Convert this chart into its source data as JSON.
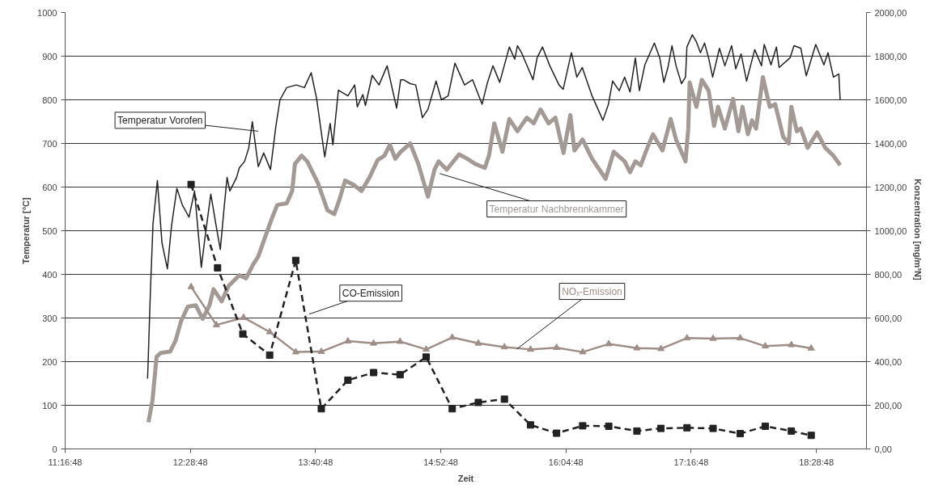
{
  "chart_data": {
    "type": "line",
    "xlabel": "Zeit",
    "ylabel": "Temperatur [°C]",
    "y2label": "Konzentration  [mg/m³N]",
    "xlim": [
      11.28,
      18.96
    ],
    "xticks": [
      {
        "value": 11.28,
        "label": "11:16:48"
      },
      {
        "value": 12.48,
        "label": "12:28:48"
      },
      {
        "value": 13.68,
        "label": "13:40:48"
      },
      {
        "value": 14.88,
        "label": "14:52:48"
      },
      {
        "value": 16.08,
        "label": "16:04:48"
      },
      {
        "value": 17.28,
        "label": "17:16:48"
      },
      {
        "value": 18.48,
        "label": "18:28:48"
      }
    ],
    "ylim": [
      0,
      1000
    ],
    "yticks": [
      0,
      100,
      200,
      300,
      400,
      500,
      600,
      700,
      800,
      900,
      1000
    ],
    "y2lim": [
      0,
      2000
    ],
    "y2ticks": [
      {
        "value": 0,
        "label": "0,00"
      },
      {
        "value": 200,
        "label": "200,00"
      },
      {
        "value": 400,
        "label": "400,00"
      },
      {
        "value": 600,
        "label": "600,00"
      },
      {
        "value": 800,
        "label": "800,00"
      },
      {
        "value": 1000,
        "label": "1000,00"
      },
      {
        "value": 1200,
        "label": "1200,00"
      },
      {
        "value": 1400,
        "label": "1400,00"
      },
      {
        "value": 1600,
        "label": "1600,00"
      },
      {
        "value": 1800,
        "label": "1800,00"
      },
      {
        "value": 2000,
        "label": "2000,00"
      }
    ],
    "grid": "y",
    "legend": false,
    "series": [
      {
        "name": "Temperatur Nachbrennkammer",
        "color": "#a39a96",
        "marker": "none",
        "line_style": "solid",
        "x": [
          12.078,
          12.117,
          12.156,
          12.195,
          12.286,
          12.338,
          12.39,
          12.455,
          12.533,
          12.598,
          12.663,
          12.702,
          12.78,
          12.845,
          12.95,
          13.014,
          13.08,
          13.131,
          13.196,
          13.261,
          13.313,
          13.404,
          13.456,
          13.482,
          13.547,
          13.6,
          13.703,
          13.794,
          13.86,
          13.91,
          13.963,
          14.04,
          14.12,
          14.197,
          14.275,
          14.34,
          14.392,
          14.444,
          14.496,
          14.587,
          14.665,
          14.757,
          14.82,
          14.86,
          14.938,
          15.055,
          15.133,
          15.211,
          15.302,
          15.342,
          15.393,
          15.471,
          15.537,
          15.615,
          15.705,
          15.771,
          15.836,
          15.914,
          15.979,
          16.057,
          16.122,
          16.161,
          16.239,
          16.33,
          16.46,
          16.538,
          16.642,
          16.694,
          16.745,
          16.797,
          16.85,
          16.914,
          17.005,
          17.083,
          17.135,
          17.226,
          17.252,
          17.265,
          17.33,
          17.382,
          17.447,
          17.499,
          17.538,
          17.603,
          17.681,
          17.733,
          17.772,
          17.824,
          17.863,
          17.902,
          17.967,
          18.033,
          18.085,
          18.162,
          18.215,
          18.24,
          18.292,
          18.331,
          18.396,
          18.487,
          18.565,
          18.643,
          18.708
        ],
        "values": [
          61,
          111,
          211,
          220,
          223,
          248,
          292,
          326,
          329,
          298,
          329,
          366,
          338,
          373,
          398,
          391,
          422,
          441,
          485,
          528,
          559,
          563,
          591,
          653,
          672,
          659,
          609,
          547,
          538,
          572,
          615,
          606,
          591,
          622,
          662,
          672,
          697,
          665,
          681,
          700,
          653,
          578,
          640,
          659,
          640,
          675,
          665,
          653,
          644,
          672,
          746,
          681,
          756,
          728,
          759,
          746,
          778,
          746,
          759,
          678,
          765,
          684,
          709,
          665,
          619,
          681,
          659,
          634,
          659,
          650,
          684,
          721,
          684,
          756,
          709,
          659,
          734,
          840,
          784,
          846,
          821,
          740,
          784,
          734,
          802,
          728,
          784,
          721,
          753,
          734,
          852,
          784,
          790,
          715,
          700,
          784,
          728,
          734,
          690,
          725,
          690,
          672,
          650
        ]
      },
      {
        "name": "Temperatur Vorofen",
        "color": "#222222",
        "marker": "none",
        "line_style": "solid",
        "x": [
          12.07,
          12.097,
          12.122,
          12.164,
          12.208,
          12.26,
          12.299,
          12.351,
          12.403,
          12.467,
          12.52,
          12.585,
          12.624,
          12.676,
          12.728,
          12.767,
          12.806,
          12.832,
          12.858,
          12.923,
          12.949,
          13.0,
          13.04,
          13.074,
          13.131,
          13.183,
          13.248,
          13.3,
          13.339,
          13.404,
          13.495,
          13.573,
          13.638,
          13.69,
          13.768,
          13.82,
          13.846,
          13.899,
          13.99,
          14.055,
          14.08,
          14.133,
          14.158,
          14.223,
          14.288,
          14.366,
          14.457,
          14.496,
          14.523,
          14.587,
          14.64,
          14.704,
          14.757,
          14.835,
          14.886,
          14.951,
          15.016,
          15.108,
          15.185,
          15.276,
          15.328,
          15.38,
          15.445,
          15.537,
          15.589,
          15.615,
          15.654,
          15.693,
          15.764,
          15.803,
          15.855,
          15.925,
          16.013,
          16.053,
          16.132,
          16.184,
          16.236,
          16.33,
          16.434,
          16.487,
          16.527,
          16.59,
          16.642,
          16.694,
          16.745,
          16.784,
          16.836,
          16.927,
          16.979,
          17.018,
          17.057,
          17.096,
          17.135,
          17.187,
          17.226,
          17.239,
          17.291,
          17.33,
          17.369,
          17.408,
          17.447,
          17.486,
          17.551,
          17.603,
          17.668,
          17.707,
          17.759,
          17.811,
          17.889,
          17.954,
          17.98,
          18.045,
          18.097,
          18.123,
          18.227,
          18.266,
          18.331,
          18.383,
          18.474,
          18.552,
          18.591,
          18.643,
          18.695,
          18.708
        ],
        "values": [
          161,
          360,
          516,
          615,
          472,
          413,
          510,
          597,
          559,
          531,
          591,
          416,
          491,
          584,
          510,
          457,
          559,
          622,
          591,
          622,
          644,
          659,
          690,
          750,
          647,
          678,
          640,
          740,
          800,
          828,
          834,
          828,
          862,
          803,
          669,
          746,
          697,
          822,
          809,
          834,
          784,
          812,
          787,
          856,
          834,
          878,
          781,
          846,
          846,
          837,
          834,
          759,
          778,
          843,
          800,
          809,
          884,
          834,
          846,
          790,
          840,
          878,
          840,
          921,
          893,
          924,
          908,
          886,
          846,
          896,
          921,
          878,
          834,
          824,
          908,
          852,
          874,
          809,
          753,
          790,
          843,
          821,
          852,
          818,
          896,
          821,
          880,
          930,
          896,
          840,
          874,
          924,
          878,
          837,
          852,
          921,
          949,
          933,
          908,
          930,
          896,
          852,
          918,
          878,
          924,
          871,
          905,
          843,
          915,
          878,
          927,
          880,
          921,
          874,
          896,
          924,
          918,
          855,
          927,
          880,
          908,
          852,
          859,
          800
        ]
      },
      {
        "name": "NOₓ-Emission",
        "color": "#9e8e88",
        "marker": "triangle",
        "line_style": "solid",
        "axis": "y2",
        "x": [
          12.487,
          12.73,
          12.99,
          13.24,
          13.49,
          13.735,
          13.99,
          14.236,
          14.49,
          14.74,
          14.99,
          15.24,
          15.49,
          15.74,
          15.99,
          16.24,
          16.49,
          16.76,
          16.99,
          17.24,
          17.49,
          17.75,
          17.99,
          18.24,
          18.43
        ],
        "values": [
          743,
          568,
          602,
          536,
          444,
          446,
          494,
          484,
          492,
          456,
          511,
          484,
          467,
          456,
          464,
          444,
          481,
          462,
          459,
          508,
          506,
          508,
          471,
          477,
          461
        ]
      },
      {
        "name": "CO-Emission",
        "color": "#222222",
        "marker": "square",
        "line_style": "dashed",
        "axis": "y2",
        "x": [
          12.487,
          12.741,
          12.983,
          13.24,
          13.49,
          13.735,
          13.99,
          14.236,
          14.49,
          14.74,
          14.99,
          15.24,
          15.49,
          15.74,
          15.99,
          16.24,
          16.49,
          16.76,
          16.99,
          17.24,
          17.49,
          17.75,
          17.99,
          18.24,
          18.43
        ],
        "values": [
          1212,
          830,
          527,
          430,
          864,
          184,
          315,
          350,
          340,
          421,
          184,
          213,
          228,
          110,
          72,
          106,
          104,
          82,
          94,
          97,
          94,
          70,
          104,
          82,
          62
        ]
      }
    ]
  }
}
